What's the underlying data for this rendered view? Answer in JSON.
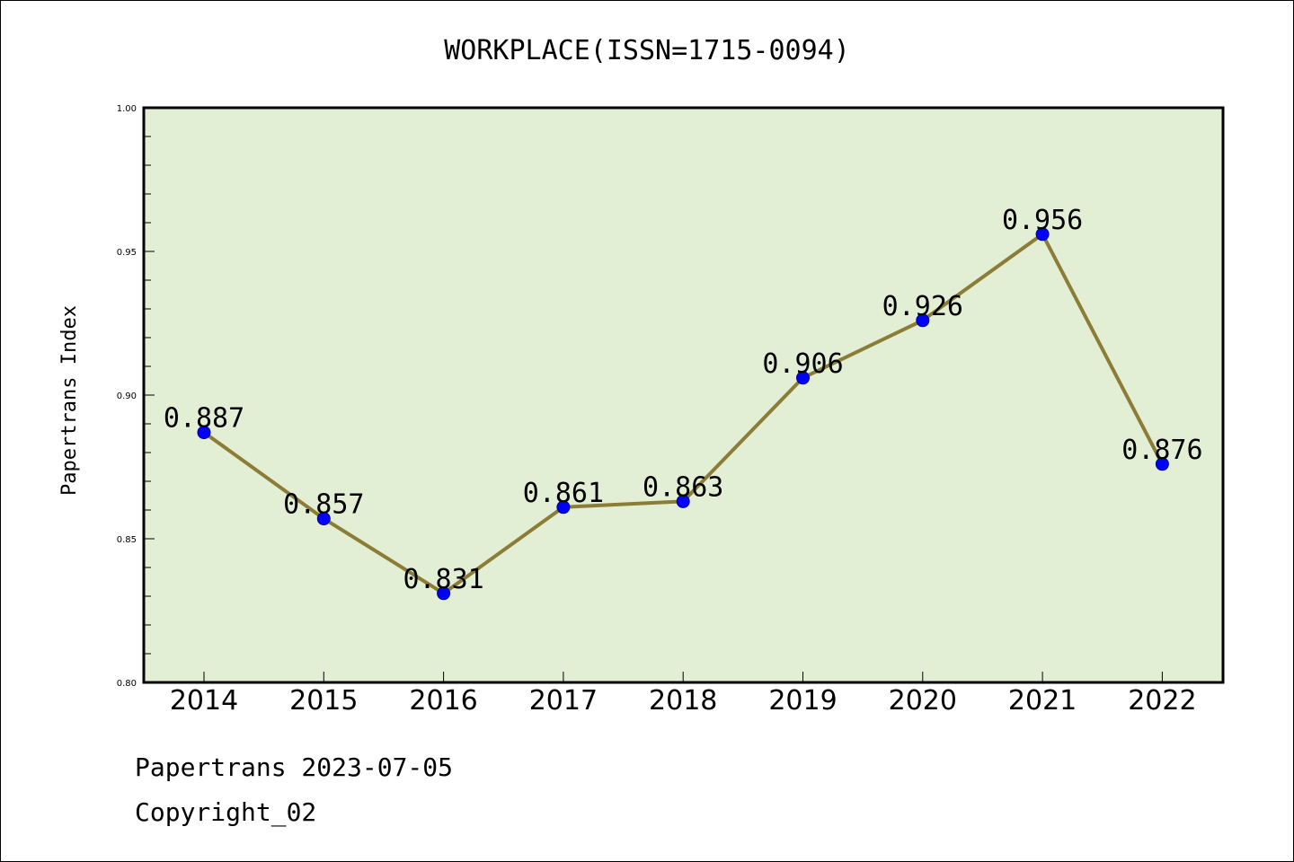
{
  "chart_data": {
    "type": "line",
    "title": "WORKPLACE(ISSN=1715-0094)",
    "ylabel": "Papertrans Index",
    "xlabel": "",
    "categories": [
      "2014",
      "2015",
      "2016",
      "2017",
      "2018",
      "2019",
      "2020",
      "2021",
      "2022"
    ],
    "series": [
      {
        "values": [
          0.887,
          0.857,
          0.831,
          0.861,
          0.863,
          0.906,
          0.926,
          0.956,
          0.876
        ],
        "data_labels": [
          "0.887",
          "0.857",
          "0.831",
          "0.861",
          "0.863",
          "0.906",
          "0.926",
          "0.956",
          "0.876"
        ]
      }
    ],
    "ylim": [
      0.8,
      1.0
    ],
    "yticks": [
      "0.80",
      "0.85",
      "0.90",
      "0.95",
      "1.00"
    ],
    "ytick_values": [
      0.8,
      0.85,
      0.9,
      0.95,
      1.0
    ],
    "grid": false,
    "legend": "none",
    "colors": {
      "plot_background": "#e2efd5",
      "line": "#8b7d35",
      "marker": "#0000ff"
    }
  },
  "footer": {
    "line1": "Papertrans 2023-07-05",
    "line2": "Copyright_02"
  }
}
